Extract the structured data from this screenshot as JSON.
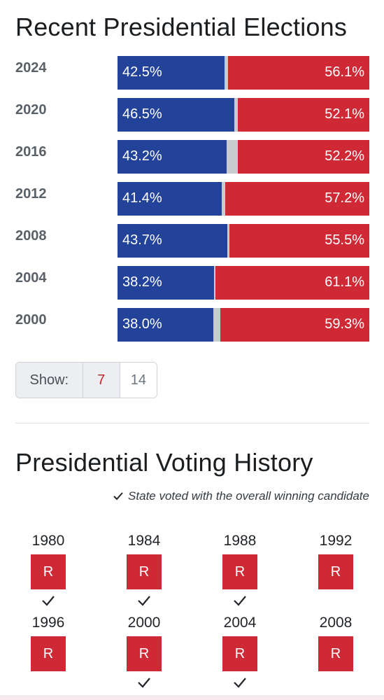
{
  "recent": {
    "title": "Recent Presidential Elections",
    "rows": [
      {
        "year": "2024",
        "dem_pct": "42.5%",
        "rep_pct": "56.1%",
        "dem": 42.5,
        "rep": 56.1
      },
      {
        "year": "2020",
        "dem_pct": "46.5%",
        "rep_pct": "52.1%",
        "dem": 46.5,
        "rep": 52.1
      },
      {
        "year": "2016",
        "dem_pct": "43.2%",
        "rep_pct": "52.2%",
        "dem": 43.2,
        "rep": 52.2
      },
      {
        "year": "2012",
        "dem_pct": "41.4%",
        "rep_pct": "57.2%",
        "dem": 41.4,
        "rep": 57.2
      },
      {
        "year": "2008",
        "dem_pct": "43.7%",
        "rep_pct": "55.5%",
        "dem": 43.7,
        "rep": 55.5
      },
      {
        "year": "2004",
        "dem_pct": "38.2%",
        "rep_pct": "61.1%",
        "dem": 38.2,
        "rep": 61.1
      },
      {
        "year": "2000",
        "dem_pct": "38.0%",
        "rep_pct": "59.3%",
        "dem": 38.0,
        "rep": 59.3
      }
    ],
    "colors": {
      "dem": "#23439a",
      "rep": "#d02936",
      "other": "#c9cbce"
    },
    "show": {
      "label": "Show:",
      "options": [
        "7",
        "14"
      ],
      "selected": "7"
    }
  },
  "history": {
    "title": "Presidential Voting History",
    "legend": "State voted with the overall winning candidate",
    "legend_icon": "check-icon",
    "items": [
      {
        "year": "1980",
        "party": "R",
        "won": true
      },
      {
        "year": "1984",
        "party": "R",
        "won": true
      },
      {
        "year": "1988",
        "party": "R",
        "won": true
      },
      {
        "year": "1992",
        "party": "R",
        "won": false
      },
      {
        "year": "1996",
        "party": "R",
        "won": false
      },
      {
        "year": "2000",
        "party": "R",
        "won": true
      },
      {
        "year": "2004",
        "party": "R",
        "won": true
      },
      {
        "year": "2008",
        "party": "R",
        "won": false
      }
    ]
  }
}
